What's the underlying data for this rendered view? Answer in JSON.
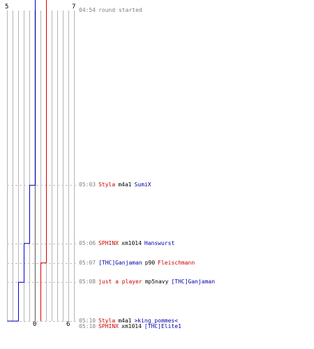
{
  "colors": {
    "team_a": "#0000cc",
    "team_b": "#dd0000",
    "grid": "#b4b4b4",
    "grid_center": "#808080",
    "dashed": "#c0c0c0",
    "time": "#808080"
  },
  "scores": {
    "blue_start": "5",
    "red_start": "7",
    "blue_end": "0",
    "red_end": "6"
  },
  "chart_data": {
    "type": "line",
    "series": [
      {
        "team": "blue",
        "x": [
          "04:54",
          "05:03",
          "05:06",
          "05:08",
          "05:10"
        ],
        "values": [
          5,
          4,
          3,
          2,
          0
        ]
      },
      {
        "team": "red",
        "x": [
          "04:54",
          "05:07",
          "05:10"
        ],
        "values": [
          7,
          6,
          6
        ]
      }
    ],
    "ylim": [
      0,
      12
    ],
    "grid": true
  },
  "events": [
    {
      "time": "04:54",
      "message": "round started"
    },
    {
      "time": "05:03",
      "killer": "Styla",
      "killer_team": "red",
      "weapon": "m4a1",
      "victim": "SumiX",
      "victim_team": "blue"
    },
    {
      "time": "05:06",
      "killer": "SPHINX",
      "killer_team": "red",
      "weapon": "xm1014",
      "victim": "Hanswurst",
      "victim_team": "blue"
    },
    {
      "time": "05:07",
      "killer": "[THC]Ganjaman",
      "killer_team": "blue",
      "weapon": "p90",
      "victim": "Fleischmann",
      "victim_team": "red"
    },
    {
      "time": "05:08",
      "killer": "just a player",
      "killer_team": "red",
      "weapon": "mp5navy",
      "victim": "[THC]Ganjaman",
      "victim_team": "blue"
    },
    {
      "time": "05:10",
      "killer": "Styla",
      "killer_team": "red",
      "weapon": "m4a1",
      "victim": ">king_pommes<",
      "victim_team": "blue"
    },
    {
      "time": "05:10",
      "killer": "SPHINX",
      "killer_team": "red",
      "weapon": "xm1014",
      "victim": "[THC]Elite1",
      "victim_team": "blue"
    }
  ]
}
